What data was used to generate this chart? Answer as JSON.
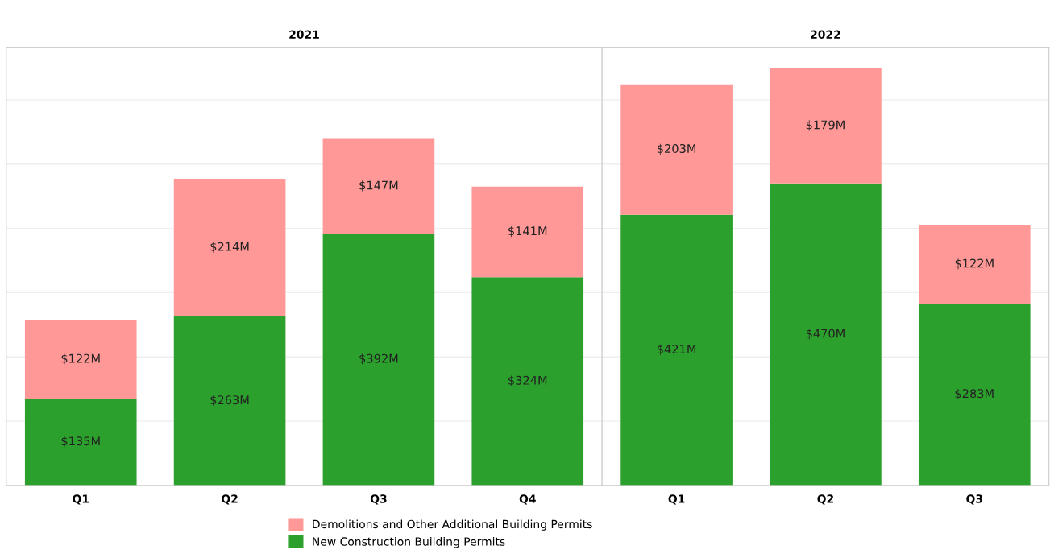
{
  "chart_data": [
    {
      "type": "bar",
      "title": "2021",
      "stacked": true,
      "categories": [
        "Q1",
        "Q2",
        "Q3",
        "Q4"
      ],
      "series": [
        {
          "name": "New Construction Building Permits",
          "color": "#2ca02c",
          "values": [
            135,
            263,
            392,
            324
          ],
          "value_labels": [
            "$135M",
            "$263M",
            "$392M",
            "$324M"
          ]
        },
        {
          "name": "Demolitions and Other Additional Building Permits",
          "color": "#ff9896",
          "values": [
            122,
            214,
            147,
            141
          ],
          "value_labels": [
            "$122M",
            "$214M",
            "$147M",
            "$141M"
          ]
        }
      ],
      "grid": "y",
      "tick_labels": "x",
      "legend": "bottom"
    },
    {
      "type": "bar",
      "title": "2022",
      "stacked": true,
      "categories": [
        "Q1",
        "Q2",
        "Q3"
      ],
      "series": [
        {
          "color": "#2ca02c",
          "values": [
            421,
            470,
            283
          ],
          "value_labels": [
            "$421M",
            "$470M",
            "$283M"
          ]
        },
        {
          "color": "#ff9896",
          "values": [
            203,
            179,
            122
          ],
          "value_labels": [
            "$203M",
            "$179M",
            "$122M"
          ]
        }
      ],
      "grid": "y",
      "tick_labels": "x"
    }
  ]
}
